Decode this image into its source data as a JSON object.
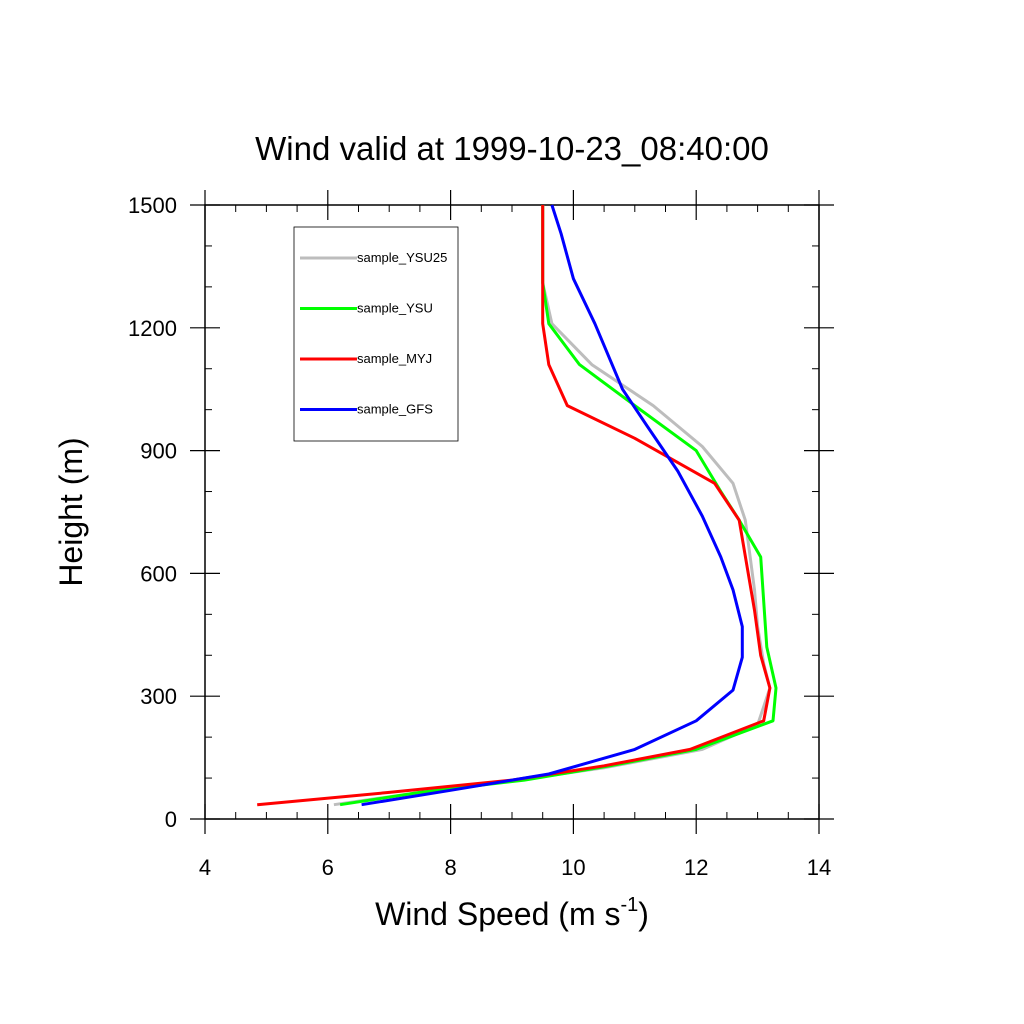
{
  "chart_data": {
    "type": "line",
    "title": "Wind valid at 1999-10-23_08:40:00",
    "xlabel": "Wind Speed (m s",
    "xlabel_sup": "-1",
    "xlabel_end": ")",
    "ylabel": "Height (m)",
    "xlim": [
      4,
      14
    ],
    "ylim": [
      0,
      1500
    ],
    "xticks": [
      4,
      6,
      8,
      10,
      12,
      14
    ],
    "yticks": [
      0,
      300,
      600,
      900,
      1200,
      1500
    ],
    "legend_position": "top-left",
    "grid": false,
    "series": [
      {
        "name": "sample_YSU25",
        "color": "#bdbdbd",
        "points": [
          [
            6.1,
            35
          ],
          [
            7.5,
            65
          ],
          [
            9.1,
            95
          ],
          [
            10.5,
            125
          ],
          [
            12.1,
            170
          ],
          [
            13.0,
            230
          ],
          [
            13.2,
            320
          ],
          [
            13.1,
            380
          ],
          [
            13.0,
            470
          ],
          [
            12.95,
            560
          ],
          [
            12.8,
            730
          ],
          [
            12.6,
            820
          ],
          [
            12.1,
            910
          ],
          [
            11.3,
            1010
          ],
          [
            10.3,
            1110
          ],
          [
            9.65,
            1210
          ],
          [
            9.5,
            1310
          ],
          [
            9.5,
            1500
          ]
        ]
      },
      {
        "name": "sample_YSU",
        "color": "#00ff00",
        "points": [
          [
            6.2,
            35
          ],
          [
            7.5,
            65
          ],
          [
            9.2,
            95
          ],
          [
            10.6,
            130
          ],
          [
            12.0,
            170
          ],
          [
            13.25,
            240
          ],
          [
            13.3,
            320
          ],
          [
            13.15,
            420
          ],
          [
            13.05,
            640
          ],
          [
            12.7,
            730
          ],
          [
            12.4,
            800
          ],
          [
            12.0,
            900
          ],
          [
            11.0,
            1010
          ],
          [
            10.1,
            1110
          ],
          [
            9.6,
            1210
          ],
          [
            9.5,
            1310
          ],
          [
            9.5,
            1500
          ]
        ]
      },
      {
        "name": "sample_MYJ",
        "color": "#ff0000",
        "points": [
          [
            4.85,
            35
          ],
          [
            7.0,
            65
          ],
          [
            9.0,
            95
          ],
          [
            10.5,
            130
          ],
          [
            11.9,
            170
          ],
          [
            13.1,
            240
          ],
          [
            13.2,
            320
          ],
          [
            13.05,
            400
          ],
          [
            12.95,
            510
          ],
          [
            12.7,
            730
          ],
          [
            12.3,
            820
          ],
          [
            11.0,
            930
          ],
          [
            9.9,
            1010
          ],
          [
            9.6,
            1110
          ],
          [
            9.5,
            1210
          ],
          [
            9.5,
            1300
          ],
          [
            9.5,
            1500
          ]
        ]
      },
      {
        "name": "sample_GFS",
        "color": "#0000ff",
        "points": [
          [
            6.55,
            35
          ],
          [
            8.0,
            70
          ],
          [
            9.6,
            110
          ],
          [
            11.0,
            170
          ],
          [
            12.0,
            240
          ],
          [
            12.6,
            315
          ],
          [
            12.75,
            395
          ],
          [
            12.75,
            470
          ],
          [
            12.6,
            560
          ],
          [
            12.4,
            640
          ],
          [
            12.1,
            740
          ],
          [
            11.7,
            850
          ],
          [
            11.2,
            960
          ],
          [
            10.8,
            1050
          ],
          [
            10.35,
            1210
          ],
          [
            10.0,
            1320
          ],
          [
            9.8,
            1430
          ],
          [
            9.65,
            1500
          ]
        ]
      }
    ]
  }
}
